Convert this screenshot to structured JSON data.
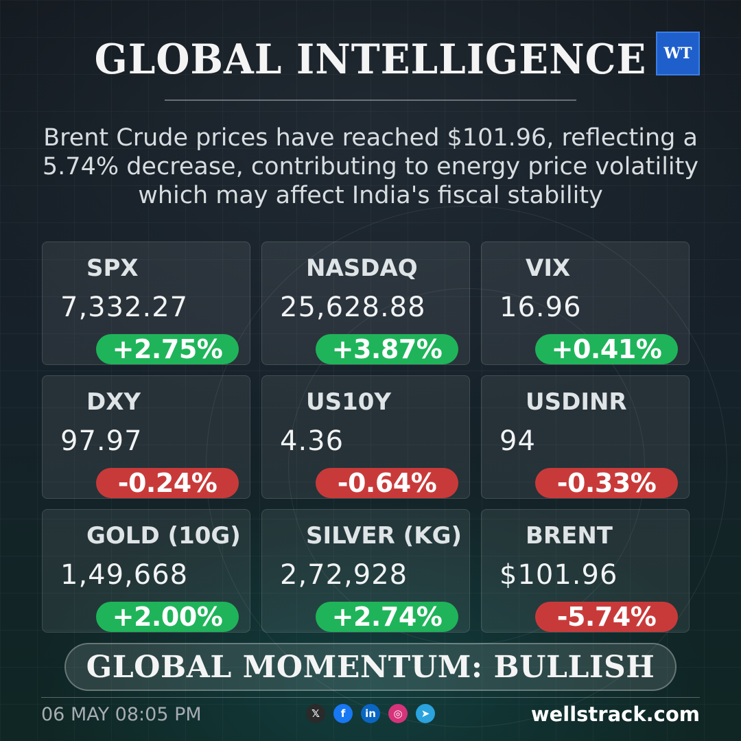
{
  "header": {
    "title": "GLOBAL INTELLIGENCE",
    "logo_text": "WT"
  },
  "headline": "Brent Crude prices have reached $101.96, reflecting a 5.74% decrease, contributing to energy price volatility which may affect India's fiscal stability",
  "colors": {
    "positive": "#1fb45a",
    "negative": "#c83a3a",
    "logo_blue": "#1f5fcc"
  },
  "tickers": [
    {
      "name": "SPX",
      "value": "7,332.27",
      "change": "+2.75%",
      "direction": "up"
    },
    {
      "name": "NASDAQ",
      "value": "25,628.88",
      "change": "+3.87%",
      "direction": "up"
    },
    {
      "name": "VIX",
      "value": "16.96",
      "change": "+0.41%",
      "direction": "up"
    },
    {
      "name": "DXY",
      "value": "97.97",
      "change": "-0.24%",
      "direction": "down"
    },
    {
      "name": "US10Y",
      "value": "4.36",
      "change": "-0.64%",
      "direction": "down"
    },
    {
      "name": "USDINR",
      "value": "94",
      "change": "-0.33%",
      "direction": "down"
    },
    {
      "name": "GOLD (10G)",
      "value": "1,49,668",
      "change": "+2.00%",
      "direction": "up"
    },
    {
      "name": "SILVER (KG)",
      "value": "2,72,928",
      "change": "+2.74%",
      "direction": "up"
    },
    {
      "name": "BRENT",
      "value": "$101.96",
      "change": "-5.74%",
      "direction": "down"
    }
  ],
  "momentum": "GLOBAL MOMENTUM: BULLISH",
  "footer": {
    "timestamp": "06 MAY 08:05 PM",
    "site": "wellstrack.com",
    "socials": [
      {
        "icon": "x-icon",
        "glyph": "𝕏",
        "color": "#2a2a2a"
      },
      {
        "icon": "facebook-icon",
        "glyph": "f",
        "color": "#1877f2"
      },
      {
        "icon": "linkedin-icon",
        "glyph": "in",
        "color": "#0a66c2"
      },
      {
        "icon": "instagram-icon",
        "glyph": "◎",
        "color": "#d6337a"
      },
      {
        "icon": "telegram-icon",
        "glyph": "➤",
        "color": "#2aa3de"
      }
    ]
  }
}
